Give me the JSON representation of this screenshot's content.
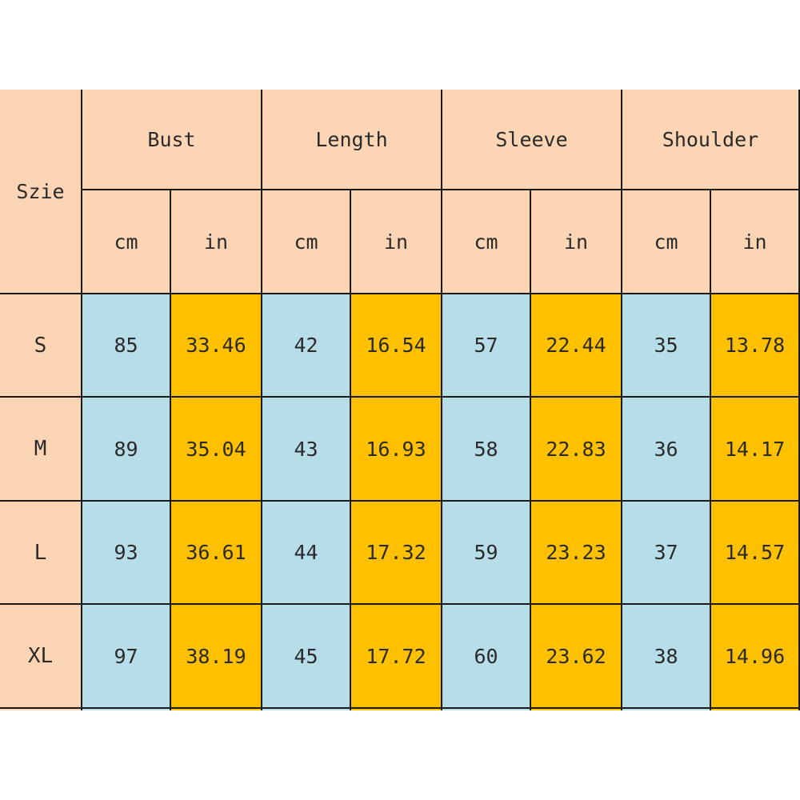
{
  "table": {
    "size_header": "Szie",
    "groups": [
      {
        "label": "Bust",
        "units": [
          "cm",
          "in"
        ]
      },
      {
        "label": "Length",
        "units": [
          "cm",
          "in"
        ]
      },
      {
        "label": "Sleeve",
        "units": [
          "cm",
          "in"
        ]
      },
      {
        "label": "Shoulder",
        "units": [
          "cm",
          "in"
        ]
      }
    ],
    "rows": [
      {
        "size": "S",
        "values": [
          "85",
          "33.46",
          "42",
          "16.54",
          "57",
          "22.44",
          "35",
          "13.78"
        ]
      },
      {
        "size": "M",
        "values": [
          "89",
          "35.04",
          "43",
          "16.93",
          "58",
          "22.83",
          "36",
          "14.17"
        ]
      },
      {
        "size": "L",
        "values": [
          "93",
          "36.61",
          "44",
          "17.32",
          "59",
          "23.23",
          "37",
          "14.57"
        ]
      },
      {
        "size": "XL",
        "values": [
          "97",
          "38.19",
          "45",
          "17.72",
          "60",
          "23.62",
          "38",
          "14.96"
        ]
      }
    ],
    "colors": {
      "header": "#fcd5b4",
      "cm": "#b7dde8",
      "in": "#ffc000",
      "border": "#1a1a1a"
    }
  }
}
